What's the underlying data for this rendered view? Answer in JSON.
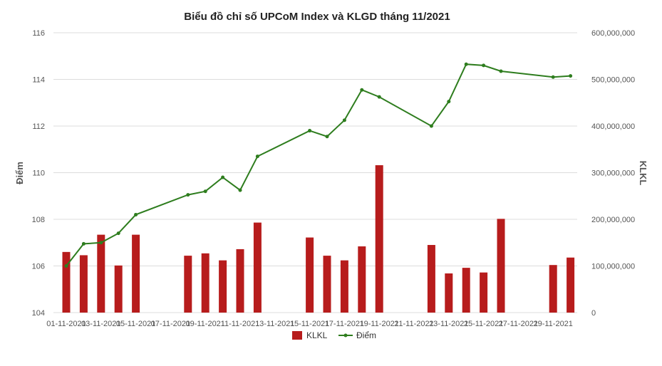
{
  "chart_data": {
    "type": "bar+line",
    "title": "Biểu đồ chỉ số UPCoM Index và KLGD tháng 11/2021",
    "ylabel_left": "Điểm",
    "ylabel_right": "KLKL",
    "xlabel": "",
    "ylim_left": [
      104,
      116
    ],
    "ylim_right": [
      0,
      600000000
    ],
    "yticks_left": [
      "104",
      "106",
      "108",
      "110",
      "112",
      "114",
      "116"
    ],
    "yticks_right": [
      "0",
      "100,000,000",
      "200,000,000",
      "300,000,000",
      "400,000,000",
      "500,000,000",
      "600,000,000"
    ],
    "x_tick_labels": [
      "01-11-2021",
      "03-11-2021",
      "05-11-2021",
      "07-11-2021",
      "09-11-2021",
      "11-11-2021",
      "13-11-2021",
      "15-11-2021",
      "17-11-2021",
      "19-11-2021",
      "21-11-2021",
      "23-11-2021",
      "25-11-2021",
      "27-11-2021",
      "29-11-2021"
    ],
    "categories": [
      "01-11-2021",
      "02-11-2021",
      "03-11-2021",
      "04-11-2021",
      "05-11-2021",
      "08-11-2021",
      "09-11-2021",
      "10-11-2021",
      "11-11-2021",
      "12-11-2021",
      "15-11-2021",
      "16-11-2021",
      "17-11-2021",
      "18-11-2021",
      "19-11-2021",
      "22-11-2021",
      "23-11-2021",
      "24-11-2021",
      "25-11-2021",
      "26-11-2021",
      "29-11-2021",
      "30-11-2021"
    ],
    "legend_position": "bottom-center",
    "grid": true,
    "series": [
      {
        "name": "KLKL",
        "type": "bar",
        "axis": "right",
        "color": "#b71c1c",
        "values": [
          130000000,
          123000000,
          167000000,
          101000000,
          167000000,
          122000000,
          127000000,
          112000000,
          136000000,
          193000000,
          161000000,
          122000000,
          112000000,
          142000000,
          316000000,
          145000000,
          84000000,
          96000000,
          86000000,
          201000000,
          102000000,
          118000000
        ]
      },
      {
        "name": "Điểm",
        "type": "line",
        "axis": "left",
        "color": "#2e7d1e",
        "values": [
          106.0,
          106.95,
          107.0,
          107.4,
          108.2,
          109.05,
          109.2,
          109.8,
          109.25,
          110.7,
          111.8,
          111.55,
          112.25,
          113.55,
          113.25,
          112.0,
          113.05,
          114.65,
          114.6,
          114.35,
          114.1,
          114.15
        ]
      }
    ]
  }
}
